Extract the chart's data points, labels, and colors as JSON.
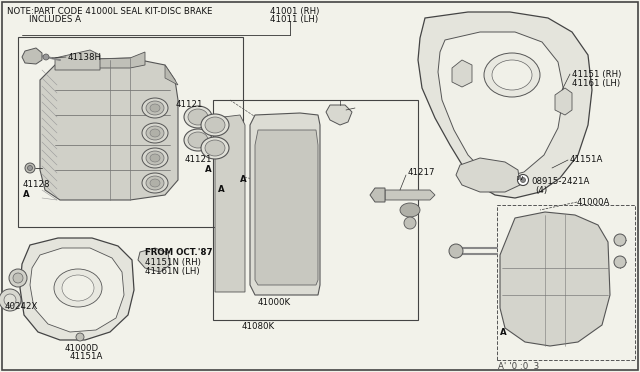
{
  "bg_color": "#f2f2ea",
  "border_color": "#555555",
  "line_color": "#333333",
  "note_text1": "NOTE:PART CODE 41000L SEAL KIT-DISC BRAKE",
  "note_text2": "        INCLUDES A",
  "label_41001": "41001 (RH)",
  "label_41011": "41011 (LH)",
  "label_41138H": "41138H",
  "label_41121a": "41121",
  "label_41121b": "41121",
  "label_41128": "41128",
  "label_A": "A",
  "label_41151rh": "41151 (RH)",
  "label_41161lh": "41161 (LH)",
  "label_41151A": "41151A",
  "label_08915": "08915-2421A",
  "label_4": "(4)",
  "label_41000A": "41000A",
  "label_41217": "41217",
  "label_41000K": "41000K",
  "label_41080K": "41080K",
  "label_from": "FROM OCT.'87",
  "label_41151N": "41151N (RH)",
  "label_41161N": "41161N (LH)",
  "label_40242X": "40242X",
  "label_41000D": "41000D",
  "label_41151Ab": "41151A",
  "label_ref": "A' '0 :0  3",
  "fs": 6.2
}
